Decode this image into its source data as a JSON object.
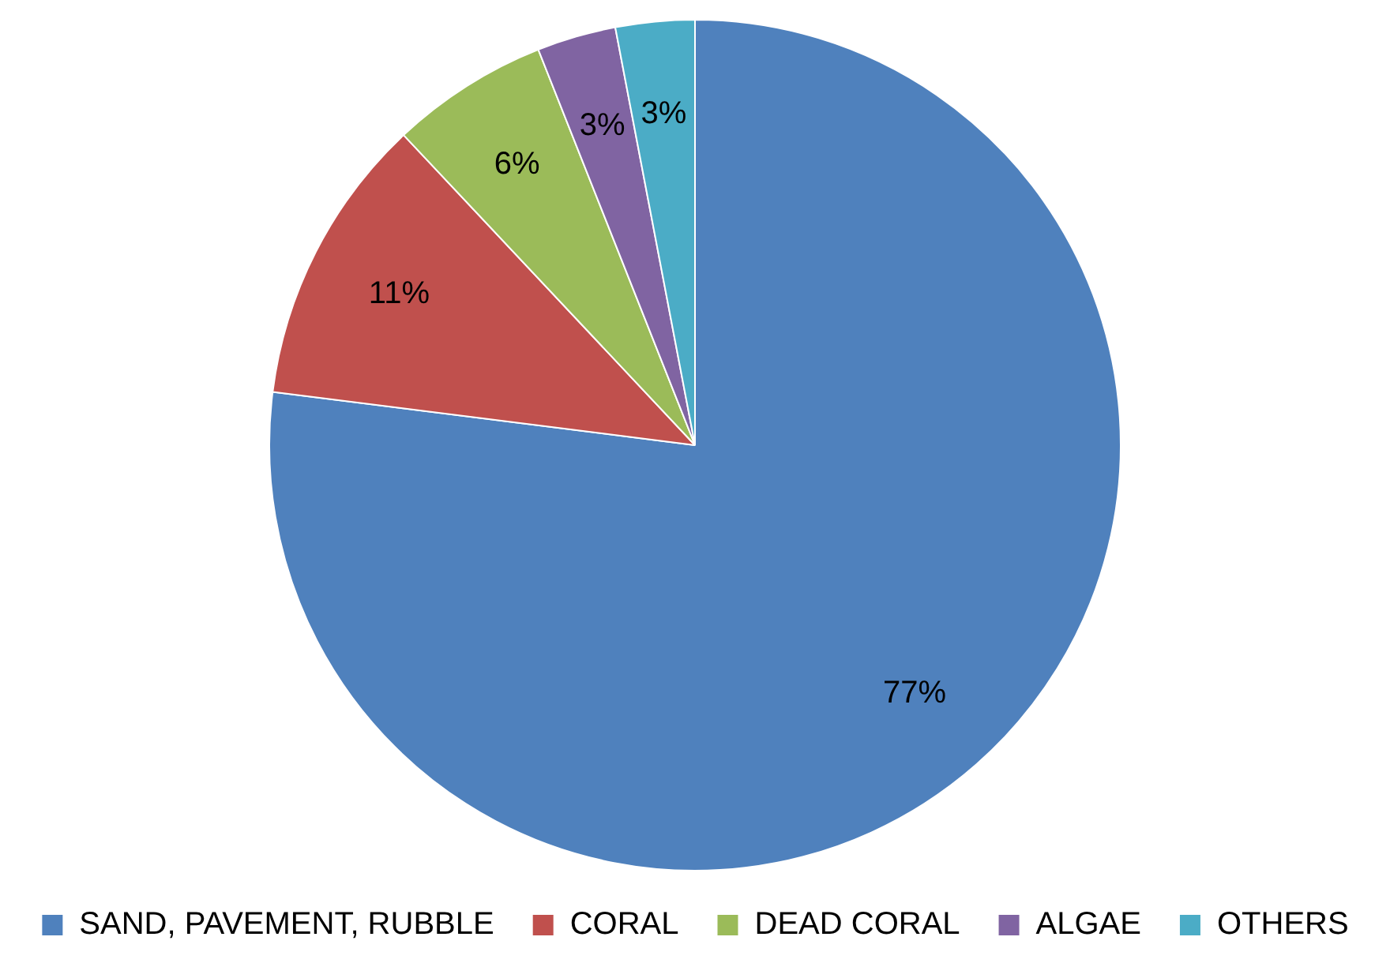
{
  "chart_data": {
    "type": "pie",
    "categories": [
      "SAND, PAVEMENT, RUBBLE",
      "CORAL",
      "DEAD CORAL",
      "ALGAE",
      "OTHERS"
    ],
    "values": [
      77,
      11,
      6,
      3,
      3
    ],
    "colors": [
      "#4f81bd",
      "#c0504d",
      "#9bbb59",
      "#8064a2",
      "#4bacc6"
    ],
    "value_labels": [
      "77%",
      "11%",
      "6%",
      "3%",
      "3%"
    ],
    "legend": "bottom"
  }
}
